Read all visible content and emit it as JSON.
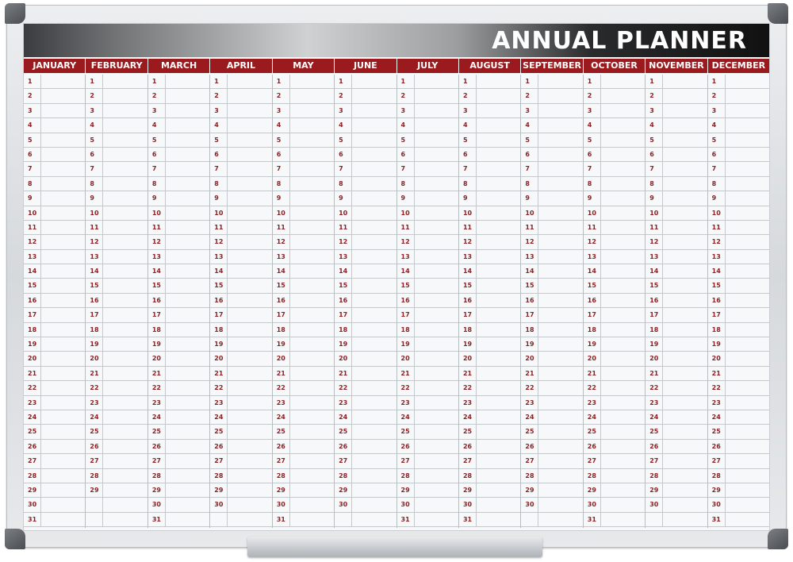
{
  "planner": {
    "title": "ANNUAL PLANNER",
    "months": [
      {
        "name": "JANUARY",
        "days": 31
      },
      {
        "name": "FEBRUARY",
        "days": 29
      },
      {
        "name": "MARCH",
        "days": 31
      },
      {
        "name": "APRIL",
        "days": 30
      },
      {
        "name": "MAY",
        "days": 31
      },
      {
        "name": "JUNE",
        "days": 30
      },
      {
        "name": "JULY",
        "days": 31
      },
      {
        "name": "AUGUST",
        "days": 31
      },
      {
        "name": "SEPTEMBER",
        "days": 30
      },
      {
        "name": "OCTOBER",
        "days": 31
      },
      {
        "name": "NOVEMBER",
        "days": 30
      },
      {
        "name": "DECEMBER",
        "days": 31
      }
    ],
    "colors": {
      "header_red": "#9b1a1e",
      "day_number": "#8a2226",
      "frame": "#d6d9dc",
      "board": "#f7f8f9"
    }
  }
}
